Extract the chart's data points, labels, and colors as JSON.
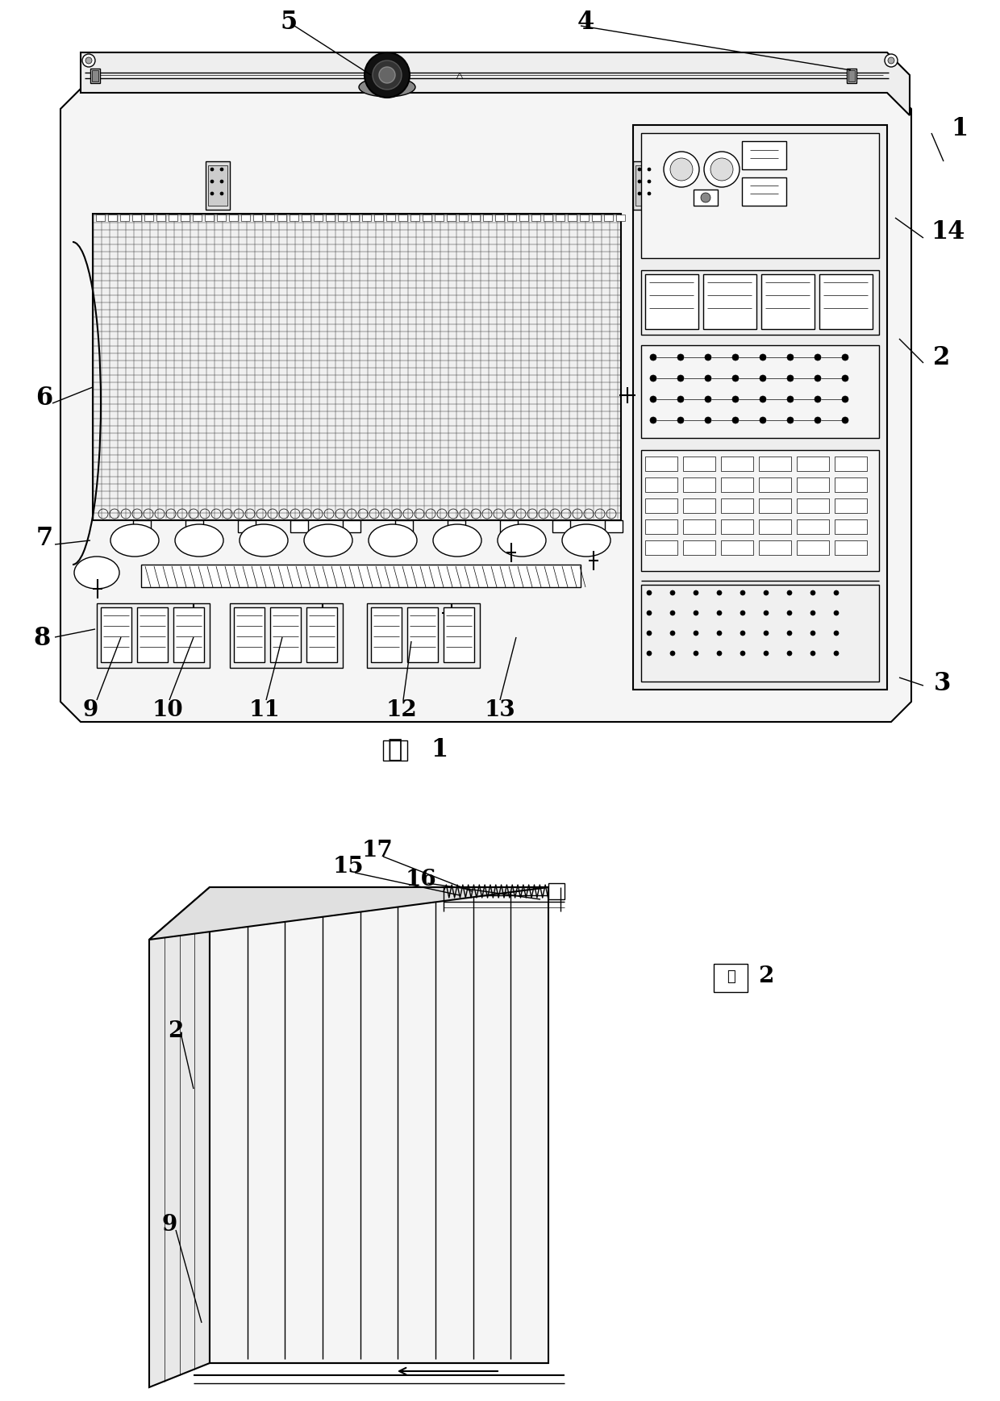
{
  "bg_color": "#ffffff",
  "line_color": "#000000",
  "fig_width": 12.4,
  "fig_height": 17.37,
  "fig1_label": "图  1",
  "fig2_label": "图  2",
  "fig1_char": "图",
  "fig2_char": "图"
}
